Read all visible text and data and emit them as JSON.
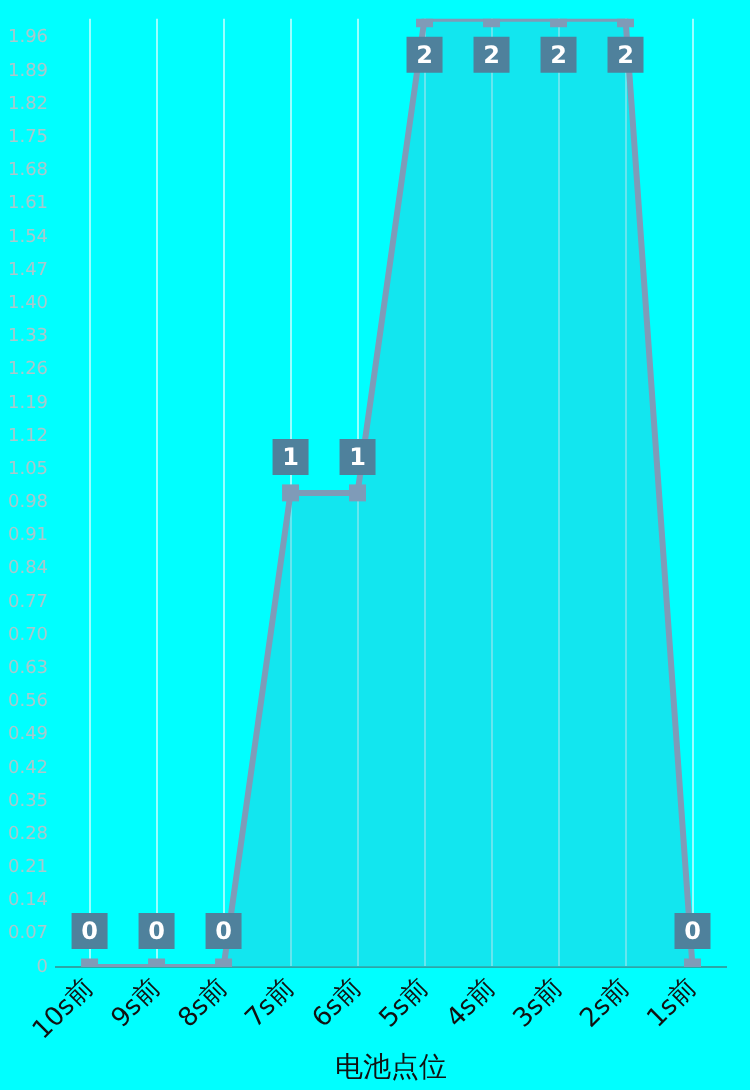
{
  "chart_data": {
    "type": "area",
    "xlabel": "电池点位",
    "categories": [
      "10s前",
      "9s前",
      "8s前",
      "7s前",
      "6s前",
      "5s前",
      "4s前",
      "3s前",
      "2s前",
      "1s前"
    ],
    "series": [
      {
        "color": "#7f9bb8",
        "values": [
          0,
          0,
          0,
          1,
          1,
          2,
          2,
          2,
          2,
          0
        ]
      }
    ],
    "ylim": [
      0,
      2
    ],
    "yticks": [
      0,
      0.07,
      0.14,
      0.21,
      0.28,
      0.35,
      0.42,
      0.49,
      0.56,
      0.63,
      {
        "value": 0.7,
        "label": "0.70"
      },
      0.77,
      0.84,
      0.91,
      0.98,
      1.05,
      1.12,
      1.19,
      1.26,
      1.33,
      {
        "value": 1.4,
        "label": "1.40"
      },
      1.47,
      1.54,
      1.61,
      1.68,
      1.75,
      1.82,
      1.89,
      1.96
    ],
    "grid": "x",
    "marker": "square",
    "data_labels": true,
    "legend": false
  }
}
